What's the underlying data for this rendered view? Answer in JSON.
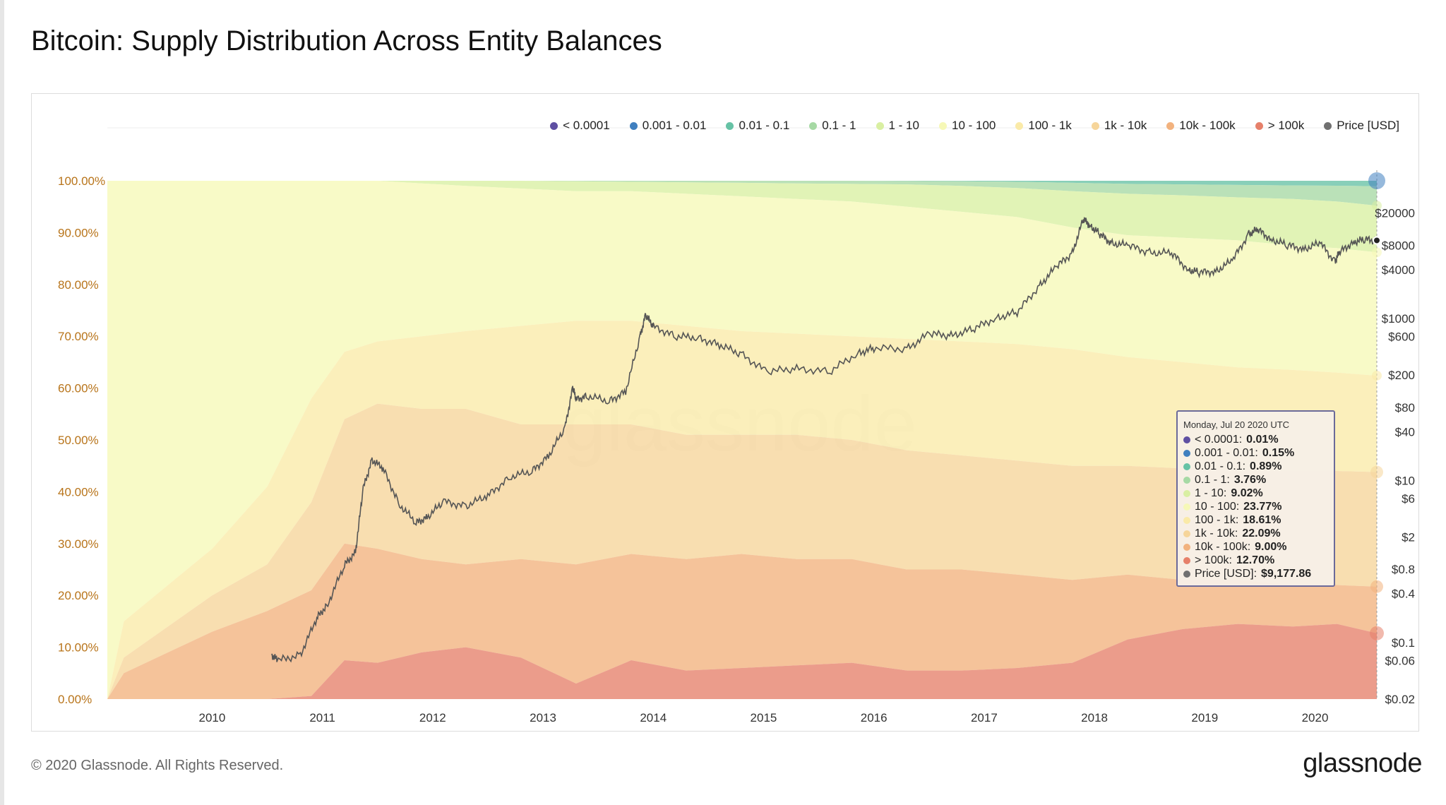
{
  "title": "Bitcoin: Supply Distribution Across Entity Balances",
  "footer": {
    "copyright": "© 2020 Glassnode. All Rights Reserved.",
    "logo": "glassnode"
  },
  "watermark": "glassnode",
  "tooltip": {
    "date": "Monday, Jul 20 2020 UTC",
    "rows": [
      {
        "label": "< 0.0001",
        "value": "0.01%"
      },
      {
        "label": "0.001 - 0.01",
        "value": "0.15%"
      },
      {
        "label": "0.01 - 0.1",
        "value": "0.89%"
      },
      {
        "label": "0.1 - 1",
        "value": "3.76%"
      },
      {
        "label": "1 - 10",
        "value": "9.02%"
      },
      {
        "label": "10 - 100",
        "value": "23.77%"
      },
      {
        "label": "100 - 1k",
        "value": "18.61%"
      },
      {
        "label": "1k - 10k",
        "value": "22.09%"
      },
      {
        "label": "10k - 100k",
        "value": "9.00%"
      },
      {
        "label": "> 100k",
        "value": "12.70%"
      },
      {
        "label": "Price [USD]",
        "value": "$9,177.86"
      }
    ]
  },
  "chart_data": {
    "type": "area",
    "title": "Bitcoin: Supply Distribution Across Entity Balances",
    "stacked_percent": true,
    "x_domain": [
      2009.05,
      2020.56
    ],
    "x_ticks": [
      "2010",
      "2011",
      "2012",
      "2013",
      "2014",
      "2015",
      "2016",
      "2017",
      "2018",
      "2019",
      "2020"
    ],
    "y_left_ticks": [
      "0.00%",
      "10.00%",
      "20.00%",
      "30.00%",
      "40.00%",
      "50.00%",
      "60.00%",
      "70.00%",
      "80.00%",
      "90.00%",
      "100.00%"
    ],
    "y_left_range": [
      0,
      100
    ],
    "y_right_scale": "log",
    "y_right_range": [
      0.02,
      50000
    ],
    "y_right_ticks": [
      {
        "label": "$0.02",
        "value": 0.02
      },
      {
        "label": "$0.06",
        "value": 0.06
      },
      {
        "label": "$0.1",
        "value": 0.1
      },
      {
        "label": "$0.4",
        "value": 0.4
      },
      {
        "label": "$0.8",
        "value": 0.8
      },
      {
        "label": "$2",
        "value": 2
      },
      {
        "label": "$6",
        "value": 6
      },
      {
        "label": "$10",
        "value": 10
      },
      {
        "label": "$40",
        "value": 40
      },
      {
        "label": "$80",
        "value": 80
      },
      {
        "label": "$200",
        "value": 200
      },
      {
        "label": "$600",
        "value": 600
      },
      {
        "label": "$1000",
        "value": 1000
      },
      {
        "label": "$4000",
        "value": 4000
      },
      {
        "label": "$8000",
        "value": 8000
      },
      {
        "label": "$20000",
        "value": 20000
      }
    ],
    "legend_position": "top-right",
    "series": [
      {
        "name": "< 0.0001",
        "color": "#5e4fa2"
      },
      {
        "name": "0.001 - 0.01",
        "color": "#3f7fbf"
      },
      {
        "name": "0.01 - 0.1",
        "color": "#66c2a5"
      },
      {
        "name": "0.1 - 1",
        "color": "#a6d9a4"
      },
      {
        "name": "1 - 10",
        "color": "#d9efa2"
      },
      {
        "name": "10 - 100",
        "color": "#f6f8b7"
      },
      {
        "name": "100 - 1k",
        "color": "#faeaa8"
      },
      {
        "name": "1k - 10k",
        "color": "#f6d59a"
      },
      {
        "name": "10k - 100k",
        "color": "#f2b27e"
      },
      {
        "name": "> 100k",
        "color": "#e6806a"
      },
      {
        "name": "Price [USD]",
        "color": "#707070"
      }
    ],
    "stack_bounds": {
      "x": [
        2009.05,
        2009.2,
        2009.6,
        2010.0,
        2010.5,
        2010.9,
        2011.2,
        2011.5,
        2011.9,
        2012.3,
        2012.8,
        2013.3,
        2013.8,
        2014.3,
        2014.8,
        2015.3,
        2015.8,
        2016.3,
        2016.8,
        2017.3,
        2017.8,
        2018.3,
        2018.8,
        2019.3,
        2019.8,
        2020.2,
        2020.56
      ],
      "above_100k": [
        0,
        0,
        0,
        0,
        0,
        0.6,
        7.5,
        7.0,
        9.0,
        10.0,
        8.0,
        3.0,
        7.5,
        5.5,
        6.0,
        6.5,
        7.0,
        5.5,
        5.5,
        6.0,
        7.0,
        11.5,
        13.5,
        14.5,
        14.0,
        14.5,
        12.7
      ],
      "above_10k": [
        0,
        5,
        9,
        13,
        17,
        21,
        30,
        29,
        27,
        26,
        27,
        26,
        28,
        27,
        28,
        27,
        27,
        25,
        25,
        24,
        23,
        24,
        23,
        23,
        22,
        22,
        21.7
      ],
      "above_1k": [
        0,
        8,
        14,
        20,
        26,
        38,
        54,
        57,
        56,
        56,
        53,
        53,
        53,
        51,
        51,
        51,
        50,
        48,
        47,
        46,
        45,
        45,
        44.5,
        44,
        44,
        44,
        43.8
      ],
      "above_100": [
        0,
        15,
        22,
        29,
        41,
        58,
        67,
        69,
        70,
        71,
        72,
        73,
        73,
        72,
        71,
        70.5,
        70,
        69.5,
        69,
        68.5,
        67.5,
        66,
        65,
        64,
        63.5,
        63,
        62.4
      ],
      "above_10": [
        100,
        100,
        100,
        100,
        100,
        100,
        100,
        100,
        99.5,
        99,
        98.5,
        98,
        98,
        97.5,
        97,
        96.5,
        96,
        95,
        94,
        93,
        91,
        89.5,
        89,
        88.5,
        87.5,
        87,
        86.2
      ],
      "above_1": [
        100,
        100,
        100,
        100,
        100,
        100,
        100,
        100,
        100,
        100,
        100,
        99.9,
        99.8,
        99.7,
        99.6,
        99.5,
        99.4,
        99.3,
        99.0,
        98.6,
        98.0,
        97.5,
        97.2,
        96.8,
        96.5,
        96.0,
        95.2
      ],
      "above_0_1": [
        100,
        100,
        100,
        100,
        100,
        100,
        100,
        100,
        100,
        100,
        100,
        100,
        100,
        100,
        100,
        100,
        100,
        99.95,
        99.9,
        99.8,
        99.6,
        99.4,
        99.3,
        99.2,
        99.1,
        99.05,
        98.95
      ]
    },
    "price": {
      "x": [
        2010.54,
        2010.6,
        2010.8,
        2010.95,
        2011.05,
        2011.2,
        2011.3,
        2011.37,
        2011.45,
        2011.55,
        2011.7,
        2011.85,
        2011.95,
        2012.1,
        2012.3,
        2012.5,
        2012.7,
        2012.9,
        2013.05,
        2013.2,
        2013.27,
        2013.3,
        2013.4,
        2013.6,
        2013.75,
        2013.88,
        2013.93,
        2014.0,
        2014.2,
        2014.4,
        2014.6,
        2014.8,
        2015.03,
        2015.3,
        2015.6,
        2015.85,
        2016.0,
        2016.3,
        2016.5,
        2016.7,
        2016.9,
        2017.1,
        2017.3,
        2017.5,
        2017.65,
        2017.8,
        2017.9,
        2017.96,
        2018.05,
        2018.15,
        2018.3,
        2018.5,
        2018.7,
        2018.85,
        2018.95,
        2019.1,
        2019.25,
        2019.4,
        2019.48,
        2019.6,
        2019.75,
        2019.9,
        2020.05,
        2020.18,
        2020.22,
        2020.35,
        2020.45,
        2020.56
      ],
      "usd": [
        0.07,
        0.06,
        0.07,
        0.2,
        0.3,
        0.9,
        1.3,
        8,
        18,
        14,
        5,
        3,
        3.5,
        5.5,
        4.8,
        6.5,
        11,
        13,
        20,
        45,
        140,
        100,
        110,
        95,
        125,
        600,
        1100,
        800,
        600,
        580,
        470,
        360,
        220,
        240,
        220,
        370,
        430,
        420,
        650,
        610,
        740,
        1000,
        1200,
        2500,
        4300,
        6400,
        17000,
        14000,
        11000,
        8500,
        8000,
        6500,
        6400,
        4000,
        3700,
        3800,
        5200,
        11000,
        12500,
        9500,
        8000,
        7200,
        8500,
        5000,
        6500,
        8800,
        9400,
        9178
      ]
    },
    "tooltip_date": "Monday, Jul 20 2020 UTC"
  }
}
